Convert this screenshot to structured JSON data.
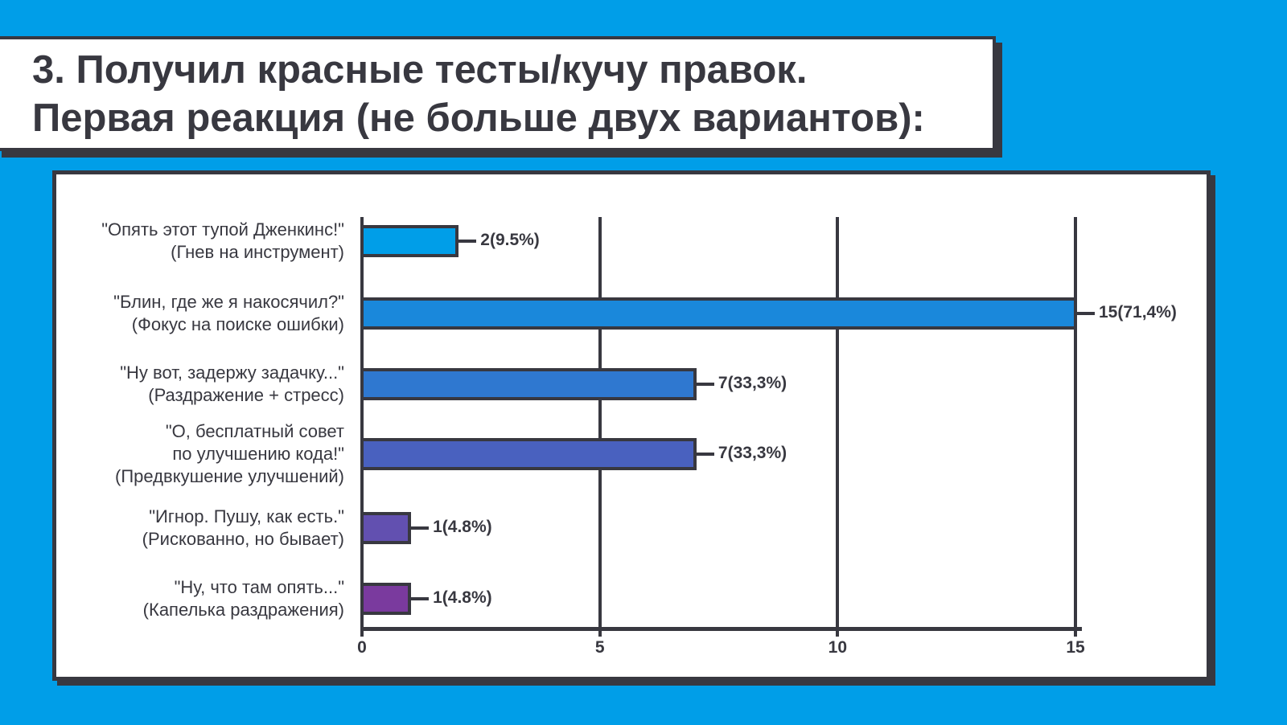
{
  "title": {
    "line1": "3.  Получил красные тесты/кучу правок.",
    "line2": "Первая реакция (не больше двух вариантов):"
  },
  "colors": {
    "background": "#009ee8",
    "dark": "#383840",
    "panel": "#ffffff"
  },
  "chart_data": {
    "type": "bar",
    "orientation": "horizontal",
    "title": "3. Получил красные тесты/кучу правок. Первая реакция (не больше двух вариантов):",
    "xlabel": "",
    "ylabel": "",
    "xlim": [
      0,
      15
    ],
    "xticks": [
      "0",
      "5",
      "10",
      "15"
    ],
    "grid": true,
    "categories": [
      "\"Опять этот тупой Дженкинс!\" (Гнев на инструмент)",
      "\"Блин, где же я накосячил?\" (Фокус на поиске ошибки)",
      "\"Ну вот, задержу задачку...\" (Раздражение + стресс)",
      "\"О, бесплатный совет по улучшению кода!\" (Предвкушение улучшений)",
      "\"Игнор. Пушу, как есть.\" (Рискованно, но бывает)",
      "\"Ну, что там опять...\" (Капелька раздражения)"
    ],
    "values": [
      2,
      15,
      7,
      7,
      1,
      1
    ],
    "percentages": [
      "9.5%",
      "71,4%",
      "33,3%",
      "33,3%",
      "4.8%",
      "4.8%"
    ],
    "data_labels": [
      "2(9.5%)",
      "15(71,4%)",
      "7(33,3%)",
      "7(33,3%)",
      "1(4.8%)",
      "1(4.8%)"
    ],
    "bar_colors": [
      "#009ee8",
      "#1a88db",
      "#2f78d0",
      "#4961bf",
      "#6250b0",
      "#7a3a9e"
    ]
  },
  "rows": [
    {
      "lines": [
        "\"Опять этот тупой Дженкинс!\"",
        "(Гнев на инструмент)"
      ],
      "value": 2,
      "label": "2(9.5%)",
      "color": "#009ee8"
    },
    {
      "lines": [
        "\"Блин, где же я накосячил?\"",
        "(Фокус на поиске ошибки)"
      ],
      "value": 15,
      "label": "15(71,4%)",
      "color": "#1a88db"
    },
    {
      "lines": [
        "\"Ну вот, задержу задачку...\"",
        "(Раздражение + стресс)"
      ],
      "value": 7,
      "label": "7(33,3%)",
      "color": "#2f78d0"
    },
    {
      "lines": [
        "\"О, бесплатный совет",
        "по улучшению кода!\"",
        "(Предвкушение улучшений)"
      ],
      "value": 7,
      "label": "7(33,3%)",
      "color": "#4961bf"
    },
    {
      "lines": [
        "\"Игнор. Пушу, как есть.\"",
        "(Рискованно, но бывает)"
      ],
      "value": 1,
      "label": "1(4.8%)",
      "color": "#6250b0"
    },
    {
      "lines": [
        "\"Ну, что там опять...\"",
        "(Капелька раздражения)"
      ],
      "value": 1,
      "label": "1(4.8%)",
      "color": "#7a3a9e"
    }
  ],
  "axis": {
    "ticks": [
      0,
      5,
      10,
      15
    ],
    "tick_labels": [
      "0",
      "5",
      "10",
      "15"
    ]
  }
}
